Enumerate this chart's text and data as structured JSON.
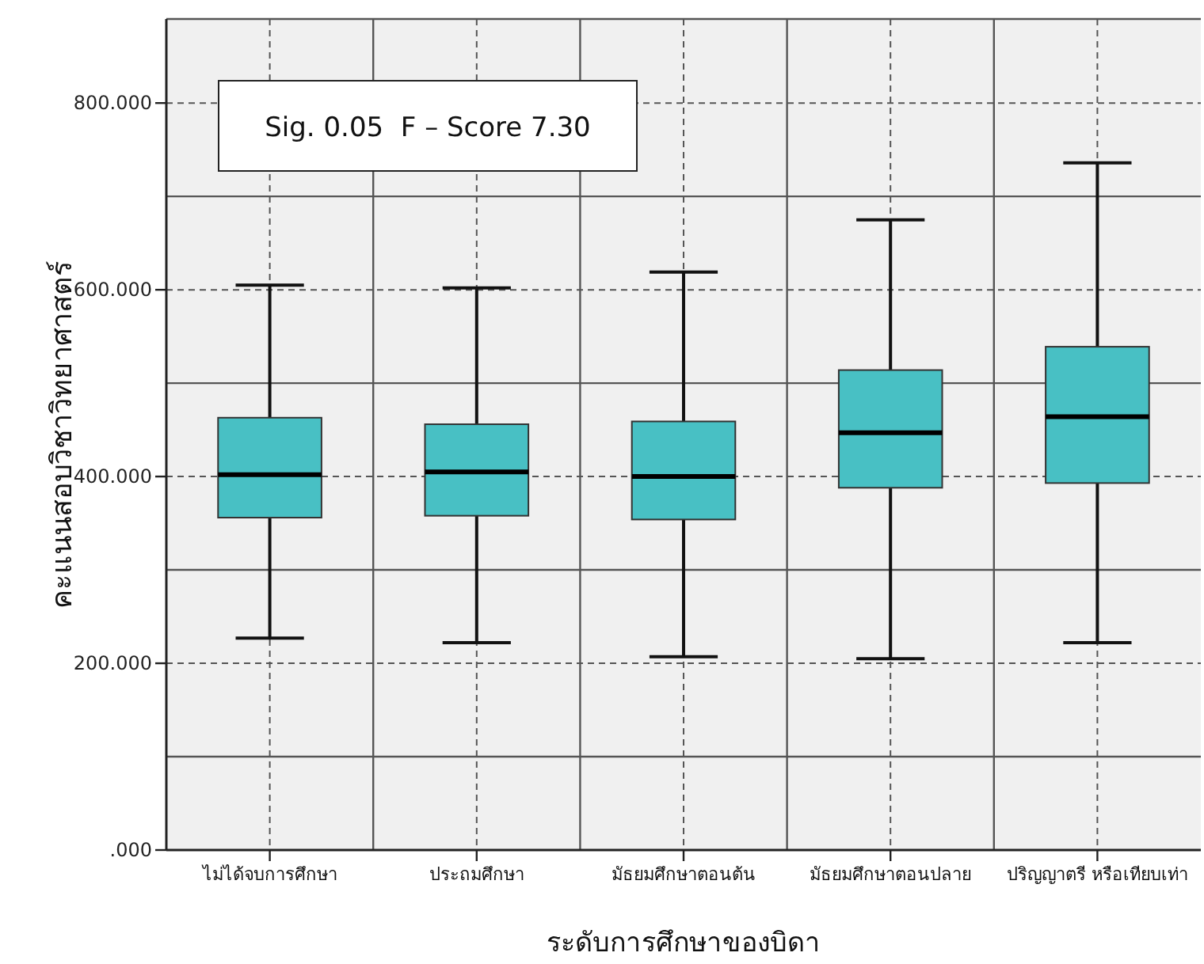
{
  "chart_data": {
    "type": "box",
    "xlabel": "ระดับการศึกษาของบิดา",
    "ylabel": "คะแนนสอบวิชาวิทยาศาสตร์",
    "annotations": [
      "Sig. 0.05  F – Score 7.30"
    ],
    "categories": [
      "ไม่ได้จบการศึกษา",
      "ประถมศึกษา",
      "มัธยมศึกษาตอนต้น",
      "มัธยมศึกษาตอนปลาย",
      "ปริญญาตรี หรือเทียบเท่า"
    ],
    "series": [
      {
        "color": "#48c0c4",
        "boxes": [
          {
            "low": 227,
            "q1": 356,
            "median": 402,
            "q3": 463,
            "high": 605
          },
          {
            "low": 222,
            "q1": 358,
            "median": 405,
            "q3": 456,
            "high": 602
          },
          {
            "low": 207,
            "q1": 354,
            "median": 400,
            "q3": 459,
            "high": 619
          },
          {
            "low": 205,
            "q1": 388,
            "median": 447,
            "q3": 514,
            "high": 675
          },
          {
            "low": 222,
            "q1": 393,
            "median": 464,
            "q3": 539,
            "high": 736
          }
        ]
      }
    ],
    "ylim": [
      0,
      890
    ],
    "yticks": [
      {
        "value": 0,
        "label": ".000"
      },
      {
        "value": 200,
        "label": "200.000"
      },
      {
        "value": 400,
        "label": "400.000"
      },
      {
        "value": 600,
        "label": "600.000"
      },
      {
        "value": 800,
        "label": "800.000"
      }
    ],
    "grid": true
  }
}
